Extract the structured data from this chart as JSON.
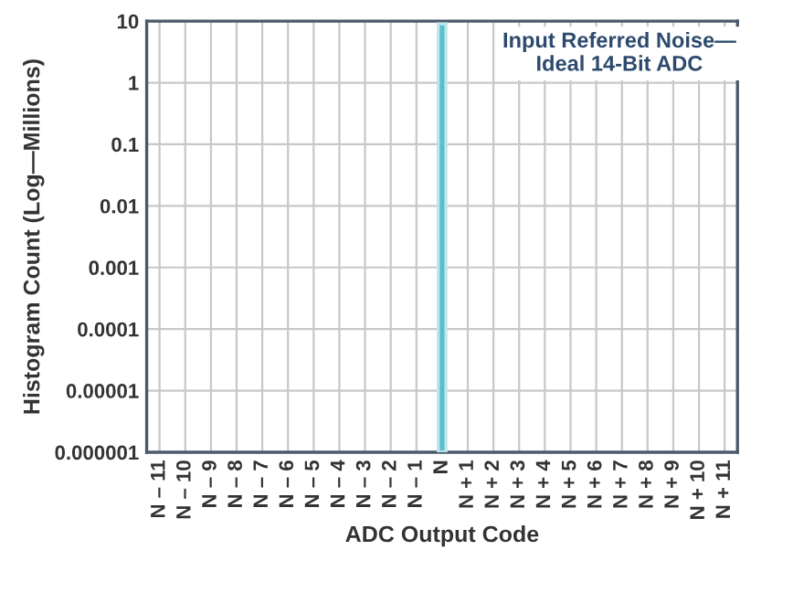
{
  "chart_data": {
    "type": "bar",
    "xlabel": "ADC Output Code",
    "ylabel": "Histogram Count (Log—Millions)",
    "annotations": [
      "Input Referred Noise—\nIdeal 14-Bit ADC"
    ],
    "categories": [
      "N – 11",
      "N – 10",
      "N – 9",
      "N – 8",
      "N – 7",
      "N – 6",
      "N – 5",
      "N – 4",
      "N – 3",
      "N – 2",
      "N – 1",
      "N",
      "N + 1",
      "N + 2",
      "N + 3",
      "N + 4",
      "N + 5",
      "N + 6",
      "N + 7",
      "N + 8",
      "N + 9",
      "N + 10",
      "N + 11"
    ],
    "values": [
      null,
      null,
      null,
      null,
      null,
      null,
      null,
      null,
      null,
      null,
      null,
      9,
      null,
      null,
      null,
      null,
      null,
      null,
      null,
      null,
      null,
      null,
      null
    ],
    "color": "#5bbfca",
    "log": true,
    "ylim": [
      1e-06,
      10
    ],
    "yticks": [
      10,
      1,
      0.1,
      0.01,
      0.001,
      0.0001,
      {
        "value": 1e-05,
        "label": "0.00001"
      },
      {
        "value": 1e-06,
        "label": "0.000001"
      }
    ],
    "grid": true
  }
}
